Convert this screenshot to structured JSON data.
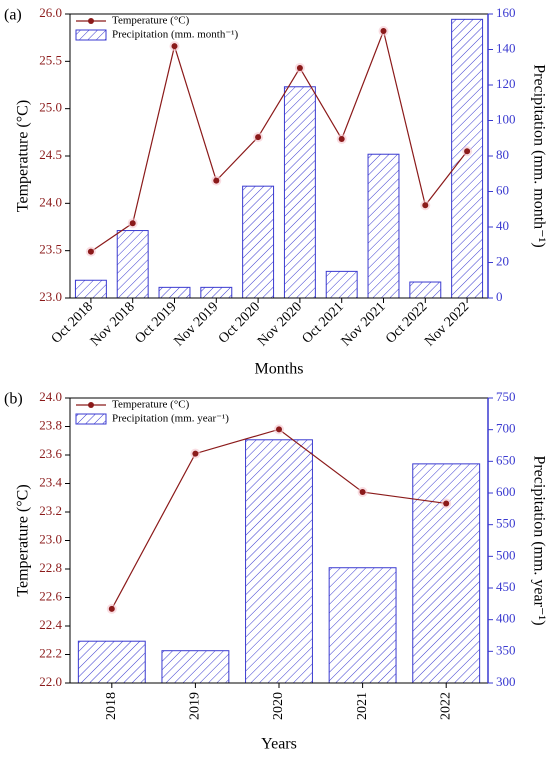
{
  "chart_data": [
    {
      "type": "combo",
      "panel_label": "(a)",
      "categories": [
        "Oct 2018",
        "Nov 2018",
        "Oct 2019",
        "Nov 2019",
        "Oct 2020",
        "Nov 2020",
        "Oct 2021",
        "Nov 2021",
        "Oct 2022",
        "Nov 2022"
      ],
      "x_label": "Months",
      "y_label": "Temperature (°C)",
      "y2_label": "Precipitation (mm. month⁻¹)",
      "series": [
        {
          "name": "Temperature (°C)",
          "kind": "line",
          "color": "#8b1a1a",
          "axis": "y",
          "values": [
            23.49,
            23.79,
            25.66,
            24.24,
            24.7,
            25.43,
            24.68,
            25.82,
            23.98,
            24.55
          ]
        },
        {
          "name": "Precipitation (mm. month⁻¹)",
          "kind": "bar",
          "color": "#3a3ad0",
          "axis": "y2",
          "values": [
            10,
            38,
            6,
            6,
            63,
            119,
            15,
            81,
            9,
            157
          ]
        }
      ],
      "ylim": [
        23.0,
        26.0
      ],
      "yticks": [
        {
          "value": 23.0,
          "label": "23.0"
        },
        {
          "value": 23.5,
          "label": "23.5"
        },
        {
          "value": 24.0,
          "label": "24.0"
        },
        {
          "value": 24.5,
          "label": "24.5"
        },
        {
          "value": 25.0,
          "label": "25.0"
        },
        {
          "value": 25.5,
          "label": "25.5"
        },
        {
          "value": 26.0,
          "label": "26.0"
        }
      ],
      "y2lim": [
        0,
        160
      ],
      "y2ticks": [
        0,
        20,
        40,
        60,
        80,
        100,
        120,
        140,
        160
      ]
    },
    {
      "type": "combo",
      "panel_label": "(b)",
      "categories": [
        "2018",
        "2019",
        "2020",
        "2021",
        "2022"
      ],
      "x_label": "Years",
      "y_label": "Temperature (°C)",
      "y2_label": "Precipitation (mm. year⁻¹)",
      "series": [
        {
          "name": "Temperature (°C)",
          "kind": "line",
          "color": "#8b1a1a",
          "axis": "y",
          "values": [
            22.52,
            23.61,
            23.78,
            23.34,
            23.26
          ]
        },
        {
          "name": "Precipitation (mm. year⁻¹)",
          "kind": "bar",
          "color": "#3a3ad0",
          "axis": "y2",
          "values": [
            366,
            351,
            684,
            482,
            646
          ]
        }
      ],
      "ylim": [
        22.0,
        24.0
      ],
      "yticks": [
        {
          "value": 22.0,
          "label": "22.0"
        },
        {
          "value": 22.2,
          "label": "22.2"
        },
        {
          "value": 22.4,
          "label": "22.4"
        },
        {
          "value": 22.6,
          "label": "22.6"
        },
        {
          "value": 22.8,
          "label": "22.8"
        },
        {
          "value": 23.0,
          "label": "23.0"
        },
        {
          "value": 23.2,
          "label": "23.2"
        },
        {
          "value": 23.4,
          "label": "23.4"
        },
        {
          "value": 23.6,
          "label": "23.6"
        },
        {
          "value": 23.8,
          "label": "23.8"
        },
        {
          "value": 24.0,
          "label": "24.0"
        }
      ],
      "y2lim": [
        300,
        750
      ],
      "y2ticks": [
        300,
        350,
        400,
        450,
        500,
        550,
        600,
        650,
        700,
        750
      ]
    }
  ]
}
